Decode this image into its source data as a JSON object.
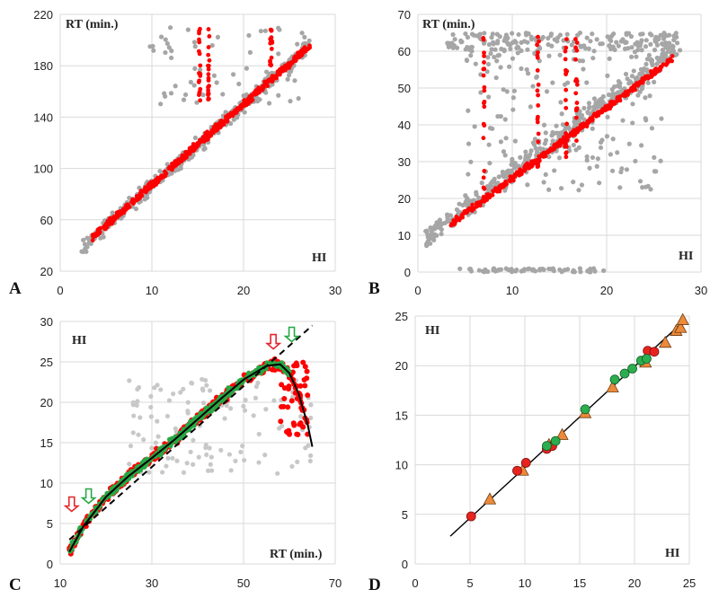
{
  "chart_data": [
    {
      "panel": "A",
      "type": "scatter",
      "ylabel": "RT (min.)",
      "xlabel": "HI",
      "xlim": [
        0,
        30
      ],
      "ylim": [
        20,
        220
      ],
      "xticks": [
        0,
        10,
        20,
        30
      ],
      "yticks": [
        20,
        60,
        100,
        140,
        180,
        220
      ],
      "grid": true,
      "series": [
        {
          "color": "#a6a6a6",
          "marker": "circle",
          "trend": {
            "x": [
              2.3,
              27.3
            ],
            "y": [
              38,
              196
            ]
          },
          "outlier_band": {
            "x": [
              9,
              27
            ],
            "y": [
              150,
              210
            ]
          }
        },
        {
          "color": "#ff0000",
          "marker": "circle",
          "trend": {
            "x": [
              3.5,
              27.3
            ],
            "y": [
              46,
              196
            ]
          },
          "streaks": [
            {
              "x": 15.2,
              "y": [
                150,
                210
              ]
            },
            {
              "x": 16.2,
              "y": [
                150,
                210
              ]
            },
            {
              "x": 23.0,
              "y": [
                180,
                210
              ]
            }
          ]
        }
      ]
    },
    {
      "panel": "B",
      "type": "scatter",
      "ylabel": "RT (min.)",
      "xlabel": "HI",
      "xlim": [
        0,
        30
      ],
      "ylim": [
        0,
        70
      ],
      "xticks": [
        0,
        10,
        20,
        30
      ],
      "yticks": [
        0,
        10,
        20,
        30,
        40,
        50,
        60,
        70
      ],
      "grid": true,
      "series": [
        {
          "color": "#a6a6a6",
          "marker": "circle",
          "trend": {
            "x": [
              0.8,
              27.5
            ],
            "y": [
              9,
              61
            ]
          },
          "upper_band": {
            "x": [
              3,
              28
            ],
            "y": [
              60,
              65
            ]
          },
          "zero_band": {
            "x": [
              4,
              20
            ],
            "y": [
              0,
              1
            ]
          }
        },
        {
          "color": "#ff0000",
          "marker": "circle",
          "trend": {
            "x": [
              3.5,
              27.0
            ],
            "y": [
              13,
              58
            ]
          },
          "streaks": [
            {
              "x": 7.0,
              "y": [
                20,
                64
              ]
            },
            {
              "x": 12.7,
              "y": [
                28,
                64
              ]
            },
            {
              "x": 15.7,
              "y": [
                30,
                64
              ]
            },
            {
              "x": 16.8,
              "y": [
                35,
                64
              ]
            }
          ]
        }
      ]
    },
    {
      "panel": "C",
      "type": "scatter",
      "ylabel": "HI",
      "xlabel": "RT (min.)",
      "xlim": [
        10,
        70
      ],
      "ylim": [
        0,
        30
      ],
      "xticks": [
        10,
        30,
        50,
        70
      ],
      "yticks": [
        0,
        5,
        10,
        15,
        20,
        25,
        30
      ],
      "grid": true,
      "series": [
        {
          "color": "#c8c8c8",
          "marker": "circle",
          "trend": {
            "x": [
              14,
              65
            ],
            "y": [
              3,
              12
            ]
          }
        },
        {
          "color": "#ff0000",
          "marker": "circle",
          "trend": {
            "x": [
              12,
              65
            ],
            "y": [
              1.5,
              16
            ]
          }
        },
        {
          "color": "#27a844",
          "marker": "circle",
          "trend": {
            "x": [
              12,
              62
            ],
            "y": [
              2,
              26
            ]
          }
        },
        {
          "color": "#000000",
          "marker": "line-solid",
          "fit": "polynomial",
          "x": [
            12,
            15,
            20,
            25,
            30,
            35,
            40,
            45,
            50,
            55,
            58,
            60,
            62,
            64,
            65
          ],
          "y": [
            1.5,
            4.6,
            8.3,
            10.9,
            13.1,
            15.4,
            17.9,
            20.4,
            22.8,
            24.5,
            24.7,
            23.6,
            21.1,
            17.2,
            14.5
          ]
        },
        {
          "color": "#000000",
          "marker": "line-dashed",
          "fit": "linear",
          "x": [
            12,
            65
          ],
          "y": [
            3,
            29.5
          ]
        }
      ],
      "annotations": [
        {
          "type": "arrow-down",
          "color": "#e3262a",
          "x": 12.5,
          "y": 6.5
        },
        {
          "type": "arrow-down",
          "color": "#27a844",
          "x": 16.2,
          "y": 7.5
        },
        {
          "type": "arrow-down",
          "color": "#e3262a",
          "x": 56.5,
          "y": 26.6
        },
        {
          "type": "arrow-down",
          "color": "#27a844",
          "x": 60.5,
          "y": 27.5
        }
      ]
    },
    {
      "panel": "D",
      "type": "scatter",
      "ylabel": "HI",
      "xlabel": "HI",
      "xlim": [
        0,
        25
      ],
      "ylim": [
        0,
        25
      ],
      "xticks": [
        0,
        5,
        10,
        15,
        20,
        25
      ],
      "yticks": [
        0,
        5,
        10,
        15,
        20,
        25
      ],
      "grid": true,
      "series": [
        {
          "color": "#e8231f",
          "marker": "circle",
          "x": [
            5.1,
            9.3,
            10.1,
            12.0,
            12.5,
            21.2,
            21.8
          ],
          "y": [
            4.8,
            9.4,
            10.2,
            11.6,
            11.9,
            21.5,
            21.4
          ]
        },
        {
          "color": "#2bae4e",
          "marker": "circle",
          "x": [
            12.0,
            12.8,
            15.5,
            18.2,
            19.1,
            19.8,
            20.6,
            21.1
          ],
          "y": [
            11.9,
            12.4,
            15.6,
            18.6,
            19.2,
            19.7,
            20.5,
            20.7
          ]
        },
        {
          "color": "#ec8a3a",
          "marker": "triangle",
          "x": [
            6.8,
            9.8,
            12.2,
            13.4,
            15.5,
            18.0,
            21.0,
            22.8,
            23.8,
            24.2,
            24.4
          ],
          "y": [
            6.5,
            9.4,
            12.0,
            13.0,
            15.2,
            17.8,
            20.3,
            22.3,
            23.5,
            23.8,
            24.6
          ]
        },
        {
          "color": "#000000",
          "marker": "line-solid",
          "x": [
            3.2,
            24.5
          ],
          "y": [
            2.8,
            24.5
          ]
        }
      ]
    }
  ]
}
